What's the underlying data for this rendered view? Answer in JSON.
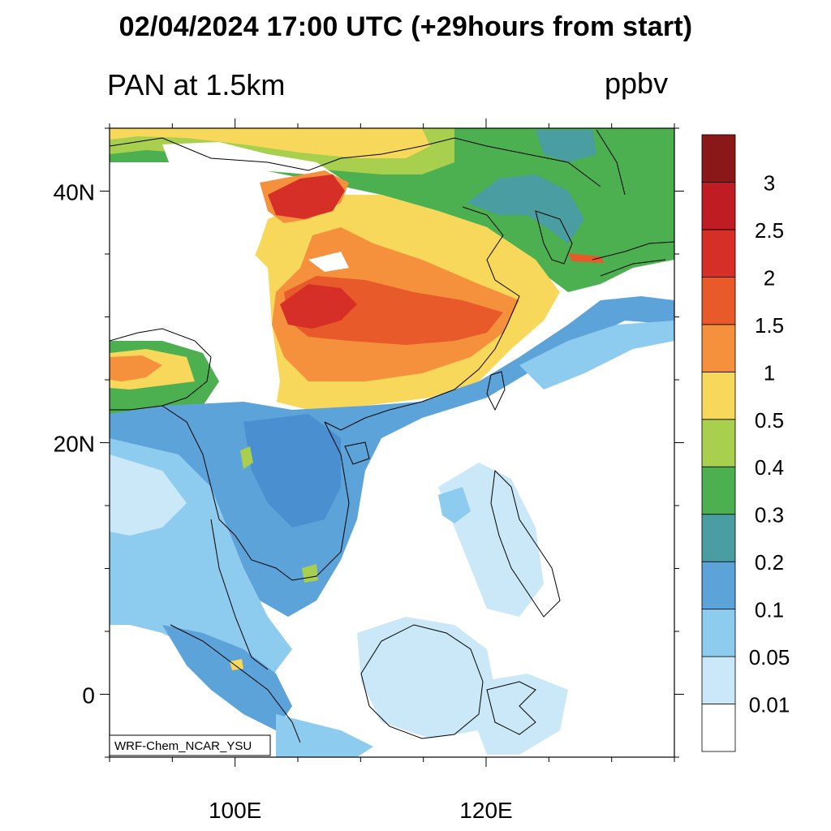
{
  "title": {
    "main": "02/04/2024 17:00 UTC (+29hours from start)",
    "left": "PAN at 1.5km",
    "right": "ppbv"
  },
  "map": {
    "lon_range": [
      90,
      135
    ],
    "lat_range": [
      -5,
      45
    ],
    "lat_ticks": [
      {
        "value": 40,
        "label": "40N"
      },
      {
        "value": 20,
        "label": "20N"
      },
      {
        "value": 0,
        "label": "0"
      }
    ],
    "lon_ticks": [
      {
        "value": 100,
        "label": "100E"
      },
      {
        "value": 120,
        "label": "120E"
      }
    ],
    "credit": "WRF-Chem_NCAR_YSU"
  },
  "colorbar": {
    "colors": [
      "#ffffff",
      "#cbe8f8",
      "#8dcbef",
      "#5ba3d9",
      "#4a9da0",
      "#4caf50",
      "#a8cf4d",
      "#f8d85a",
      "#f5913c",
      "#e85a2a",
      "#d62f27",
      "#c01c24",
      "#8b1818"
    ],
    "labels": [
      "0.01",
      "0.05",
      "0.1",
      "0.2",
      "0.3",
      "0.4",
      "0.5",
      "1",
      "1.5",
      "2",
      "2.5",
      "3"
    ]
  }
}
